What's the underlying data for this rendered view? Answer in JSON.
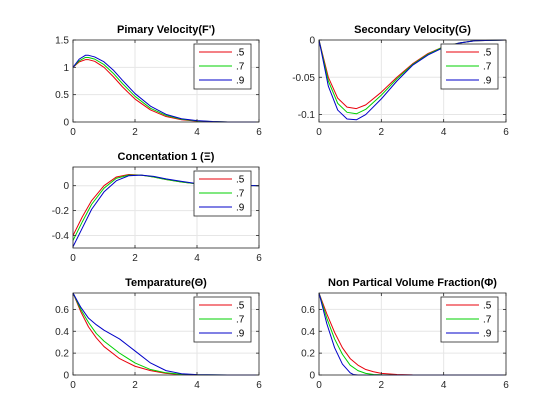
{
  "chart_data": [
    {
      "type": "line",
      "title": "Pimary Velocity(F')",
      "xlim": [
        0,
        6
      ],
      "ylim": [
        0,
        1.5
      ],
      "xticks": [
        0,
        2,
        4,
        6
      ],
      "yticks": [
        0,
        0.5,
        1,
        1.5
      ],
      "xtick_labels": [
        "0",
        "2",
        "4",
        "6"
      ],
      "ytick_labels": [
        "0",
        "0.5",
        "1",
        "1.5"
      ],
      "grid": true,
      "legend_position": "top-right",
      "series": [
        {
          "name": ".5",
          "color": "#e8000b",
          "x": [
            0,
            0.2,
            0.4,
            0.5,
            0.7,
            1.0,
            1.3,
            1.6,
            2.0,
            2.5,
            3.0,
            3.5,
            4.0,
            4.5,
            5.0,
            6.0
          ],
          "y": [
            1.0,
            1.1,
            1.14,
            1.14,
            1.11,
            1.0,
            0.83,
            0.64,
            0.42,
            0.22,
            0.1,
            0.04,
            0.015,
            0.005,
            0.0,
            0.0
          ]
        },
        {
          "name": ".7",
          "color": "#00d000",
          "x": [
            0,
            0.2,
            0.4,
            0.5,
            0.7,
            1.0,
            1.3,
            1.6,
            2.0,
            2.5,
            3.0,
            3.5,
            4.0,
            4.5,
            5.0,
            6.0
          ],
          "y": [
            1.0,
            1.12,
            1.18,
            1.18,
            1.15,
            1.05,
            0.89,
            0.7,
            0.47,
            0.25,
            0.12,
            0.05,
            0.02,
            0.006,
            0.0,
            0.0
          ]
        },
        {
          "name": ".9",
          "color": "#0000c8",
          "x": [
            0,
            0.2,
            0.4,
            0.5,
            0.7,
            1.0,
            1.3,
            1.6,
            2.0,
            2.5,
            3.0,
            3.5,
            4.0,
            4.5,
            5.0,
            6.0
          ],
          "y": [
            1.0,
            1.15,
            1.22,
            1.22,
            1.19,
            1.1,
            0.95,
            0.76,
            0.52,
            0.29,
            0.14,
            0.06,
            0.025,
            0.008,
            0.0,
            0.0
          ]
        }
      ]
    },
    {
      "type": "line",
      "title": "Secondary Velocity(G)",
      "xlim": [
        0,
        6
      ],
      "ylim": [
        -0.11,
        0
      ],
      "xticks": [
        0,
        2,
        4,
        6
      ],
      "yticks": [
        -0.1,
        -0.05,
        0
      ],
      "xtick_labels": [
        "0",
        "2",
        "4",
        "6"
      ],
      "ytick_labels": [
        "-0.1",
        "-0.05",
        "0"
      ],
      "grid": true,
      "legend_position": "top-right",
      "series": [
        {
          "name": ".5",
          "color": "#e8000b",
          "x": [
            0,
            0.3,
            0.6,
            0.9,
            1.2,
            1.5,
            2.0,
            2.5,
            3.0,
            3.5,
            4.0,
            4.5,
            5.0,
            6.0
          ],
          "y": [
            0,
            -0.05,
            -0.078,
            -0.09,
            -0.092,
            -0.087,
            -0.07,
            -0.05,
            -0.032,
            -0.018,
            -0.009,
            -0.004,
            -0.001,
            0
          ]
        },
        {
          "name": ".7",
          "color": "#00d000",
          "x": [
            0,
            0.3,
            0.6,
            0.9,
            1.2,
            1.5,
            2.0,
            2.5,
            3.0,
            3.5,
            4.0,
            4.5,
            5.0,
            6.0
          ],
          "y": [
            0,
            -0.055,
            -0.085,
            -0.097,
            -0.099,
            -0.093,
            -0.074,
            -0.052,
            -0.033,
            -0.019,
            -0.009,
            -0.004,
            -0.001,
            0
          ]
        },
        {
          "name": ".9",
          "color": "#0000c8",
          "x": [
            0,
            0.3,
            0.6,
            0.9,
            1.2,
            1.5,
            2.0,
            2.5,
            3.0,
            3.5,
            4.0,
            4.5,
            5.0,
            6.0
          ],
          "y": [
            0,
            -0.062,
            -0.094,
            -0.106,
            -0.107,
            -0.1,
            -0.079,
            -0.055,
            -0.034,
            -0.02,
            -0.01,
            -0.004,
            -0.001,
            0
          ]
        }
      ]
    },
    {
      "type": "line",
      "title": "Concentation 1 (Ξ)",
      "xlim": [
        0,
        6
      ],
      "ylim": [
        -0.5,
        0.15
      ],
      "xticks": [
        0,
        2,
        4,
        6
      ],
      "yticks": [
        -0.4,
        -0.2,
        0
      ],
      "xtick_labels": [
        "0",
        "2",
        "4",
        "6"
      ],
      "ytick_labels": [
        "-0.4",
        "-0.2",
        "0"
      ],
      "grid": true,
      "legend_position": "top-right",
      "series": [
        {
          "name": ".5",
          "color": "#e8000b",
          "x": [
            0,
            0.3,
            0.6,
            1.0,
            1.4,
            1.8,
            2.2,
            2.6,
            3.0,
            3.5,
            4.0,
            4.5,
            5.0,
            6.0
          ],
          "y": [
            -0.4,
            -0.25,
            -0.12,
            0.0,
            0.07,
            0.09,
            0.085,
            0.07,
            0.05,
            0.03,
            0.015,
            0.006,
            0.002,
            0
          ]
        },
        {
          "name": ".7",
          "color": "#00d000",
          "x": [
            0,
            0.3,
            0.6,
            1.0,
            1.4,
            1.8,
            2.2,
            2.6,
            3.0,
            3.5,
            4.0,
            4.5,
            5.0,
            6.0
          ],
          "y": [
            -0.44,
            -0.29,
            -0.15,
            -0.02,
            0.06,
            0.085,
            0.085,
            0.07,
            0.05,
            0.03,
            0.015,
            0.006,
            0.002,
            0
          ]
        },
        {
          "name": ".9",
          "color": "#0000c8",
          "x": [
            0,
            0.3,
            0.6,
            1.0,
            1.4,
            1.8,
            2.2,
            2.6,
            3.0,
            3.5,
            4.0,
            4.5,
            5.0,
            6.0
          ],
          "y": [
            -0.49,
            -0.34,
            -0.19,
            -0.05,
            0.04,
            0.08,
            0.085,
            0.075,
            0.055,
            0.035,
            0.017,
            0.007,
            0.002,
            0
          ]
        }
      ]
    },
    {
      "type": "line",
      "title": "Temparature(Θ)",
      "xlim": [
        0,
        6
      ],
      "ylim": [
        0,
        0.75
      ],
      "xticks": [
        0,
        2,
        4,
        6
      ],
      "yticks": [
        0,
        0.2,
        0.4,
        0.6
      ],
      "xtick_labels": [
        "0",
        "2",
        "4",
        "6"
      ],
      "ytick_labels": [
        "0",
        "0.2",
        "0.4",
        "0.6"
      ],
      "grid": true,
      "legend_position": "top-right",
      "series": [
        {
          "name": ".5",
          "color": "#e8000b",
          "x": [
            0,
            0.25,
            0.5,
            0.75,
            1.0,
            1.5,
            2.0,
            2.5,
            3.0,
            3.5,
            4.0,
            5.0,
            6.0
          ],
          "y": [
            0.75,
            0.58,
            0.44,
            0.34,
            0.26,
            0.15,
            0.08,
            0.04,
            0.015,
            0.005,
            0.001,
            0,
            0
          ]
        },
        {
          "name": ".7",
          "color": "#00d000",
          "x": [
            0,
            0.25,
            0.5,
            0.75,
            1.0,
            1.5,
            2.0,
            2.5,
            3.0,
            3.5,
            4.0,
            5.0,
            6.0
          ],
          "y": [
            0.75,
            0.6,
            0.48,
            0.38,
            0.31,
            0.2,
            0.11,
            0.05,
            0.02,
            0.007,
            0.002,
            0,
            0
          ]
        },
        {
          "name": ".9",
          "color": "#0000c8",
          "x": [
            0,
            0.25,
            0.5,
            0.75,
            1.0,
            1.5,
            2.0,
            2.5,
            3.0,
            3.5,
            4.0,
            5.0,
            6.0
          ],
          "y": [
            0.75,
            0.62,
            0.52,
            0.46,
            0.41,
            0.33,
            0.22,
            0.11,
            0.04,
            0.012,
            0.003,
            0,
            0
          ]
        }
      ]
    },
    {
      "type": "line",
      "title": "Non Partical Volume Fraction(Φ)",
      "xlim": [
        0,
        6
      ],
      "ylim": [
        0,
        0.75
      ],
      "xticks": [
        0,
        2,
        4,
        6
      ],
      "yticks": [
        0,
        0.2,
        0.4,
        0.6
      ],
      "xtick_labels": [
        "0",
        "2",
        "4",
        "6"
      ],
      "ytick_labels": [
        "0",
        "0.2",
        "0.4",
        "0.6"
      ],
      "grid": true,
      "legend_position": "top-right",
      "series": [
        {
          "name": ".5",
          "color": "#e8000b",
          "x": [
            0,
            0.25,
            0.5,
            0.75,
            1.0,
            1.25,
            1.5,
            1.75,
            2.0,
            2.5,
            3.0,
            4.0,
            6.0
          ],
          "y": [
            0.75,
            0.56,
            0.39,
            0.25,
            0.15,
            0.09,
            0.05,
            0.03,
            0.015,
            0.005,
            0.001,
            0,
            0
          ]
        },
        {
          "name": ".7",
          "color": "#00d000",
          "x": [
            0,
            0.25,
            0.5,
            0.75,
            1.0,
            1.25,
            1.5,
            1.75,
            2.0,
            2.5,
            3.0,
            4.0,
            6.0
          ],
          "y": [
            0.75,
            0.52,
            0.33,
            0.19,
            0.09,
            0.04,
            0.015,
            0.005,
            0.002,
            0,
            0,
            0,
            0
          ]
        },
        {
          "name": ".9",
          "color": "#0000c8",
          "x": [
            0,
            0.25,
            0.5,
            0.75,
            1.0,
            1.1,
            1.25,
            1.5,
            2.0,
            2.5,
            3.0,
            4.0,
            6.0
          ],
          "y": [
            0.75,
            0.47,
            0.25,
            0.1,
            0.02,
            0.005,
            0,
            0,
            0,
            0,
            0,
            0,
            0
          ]
        }
      ]
    }
  ]
}
